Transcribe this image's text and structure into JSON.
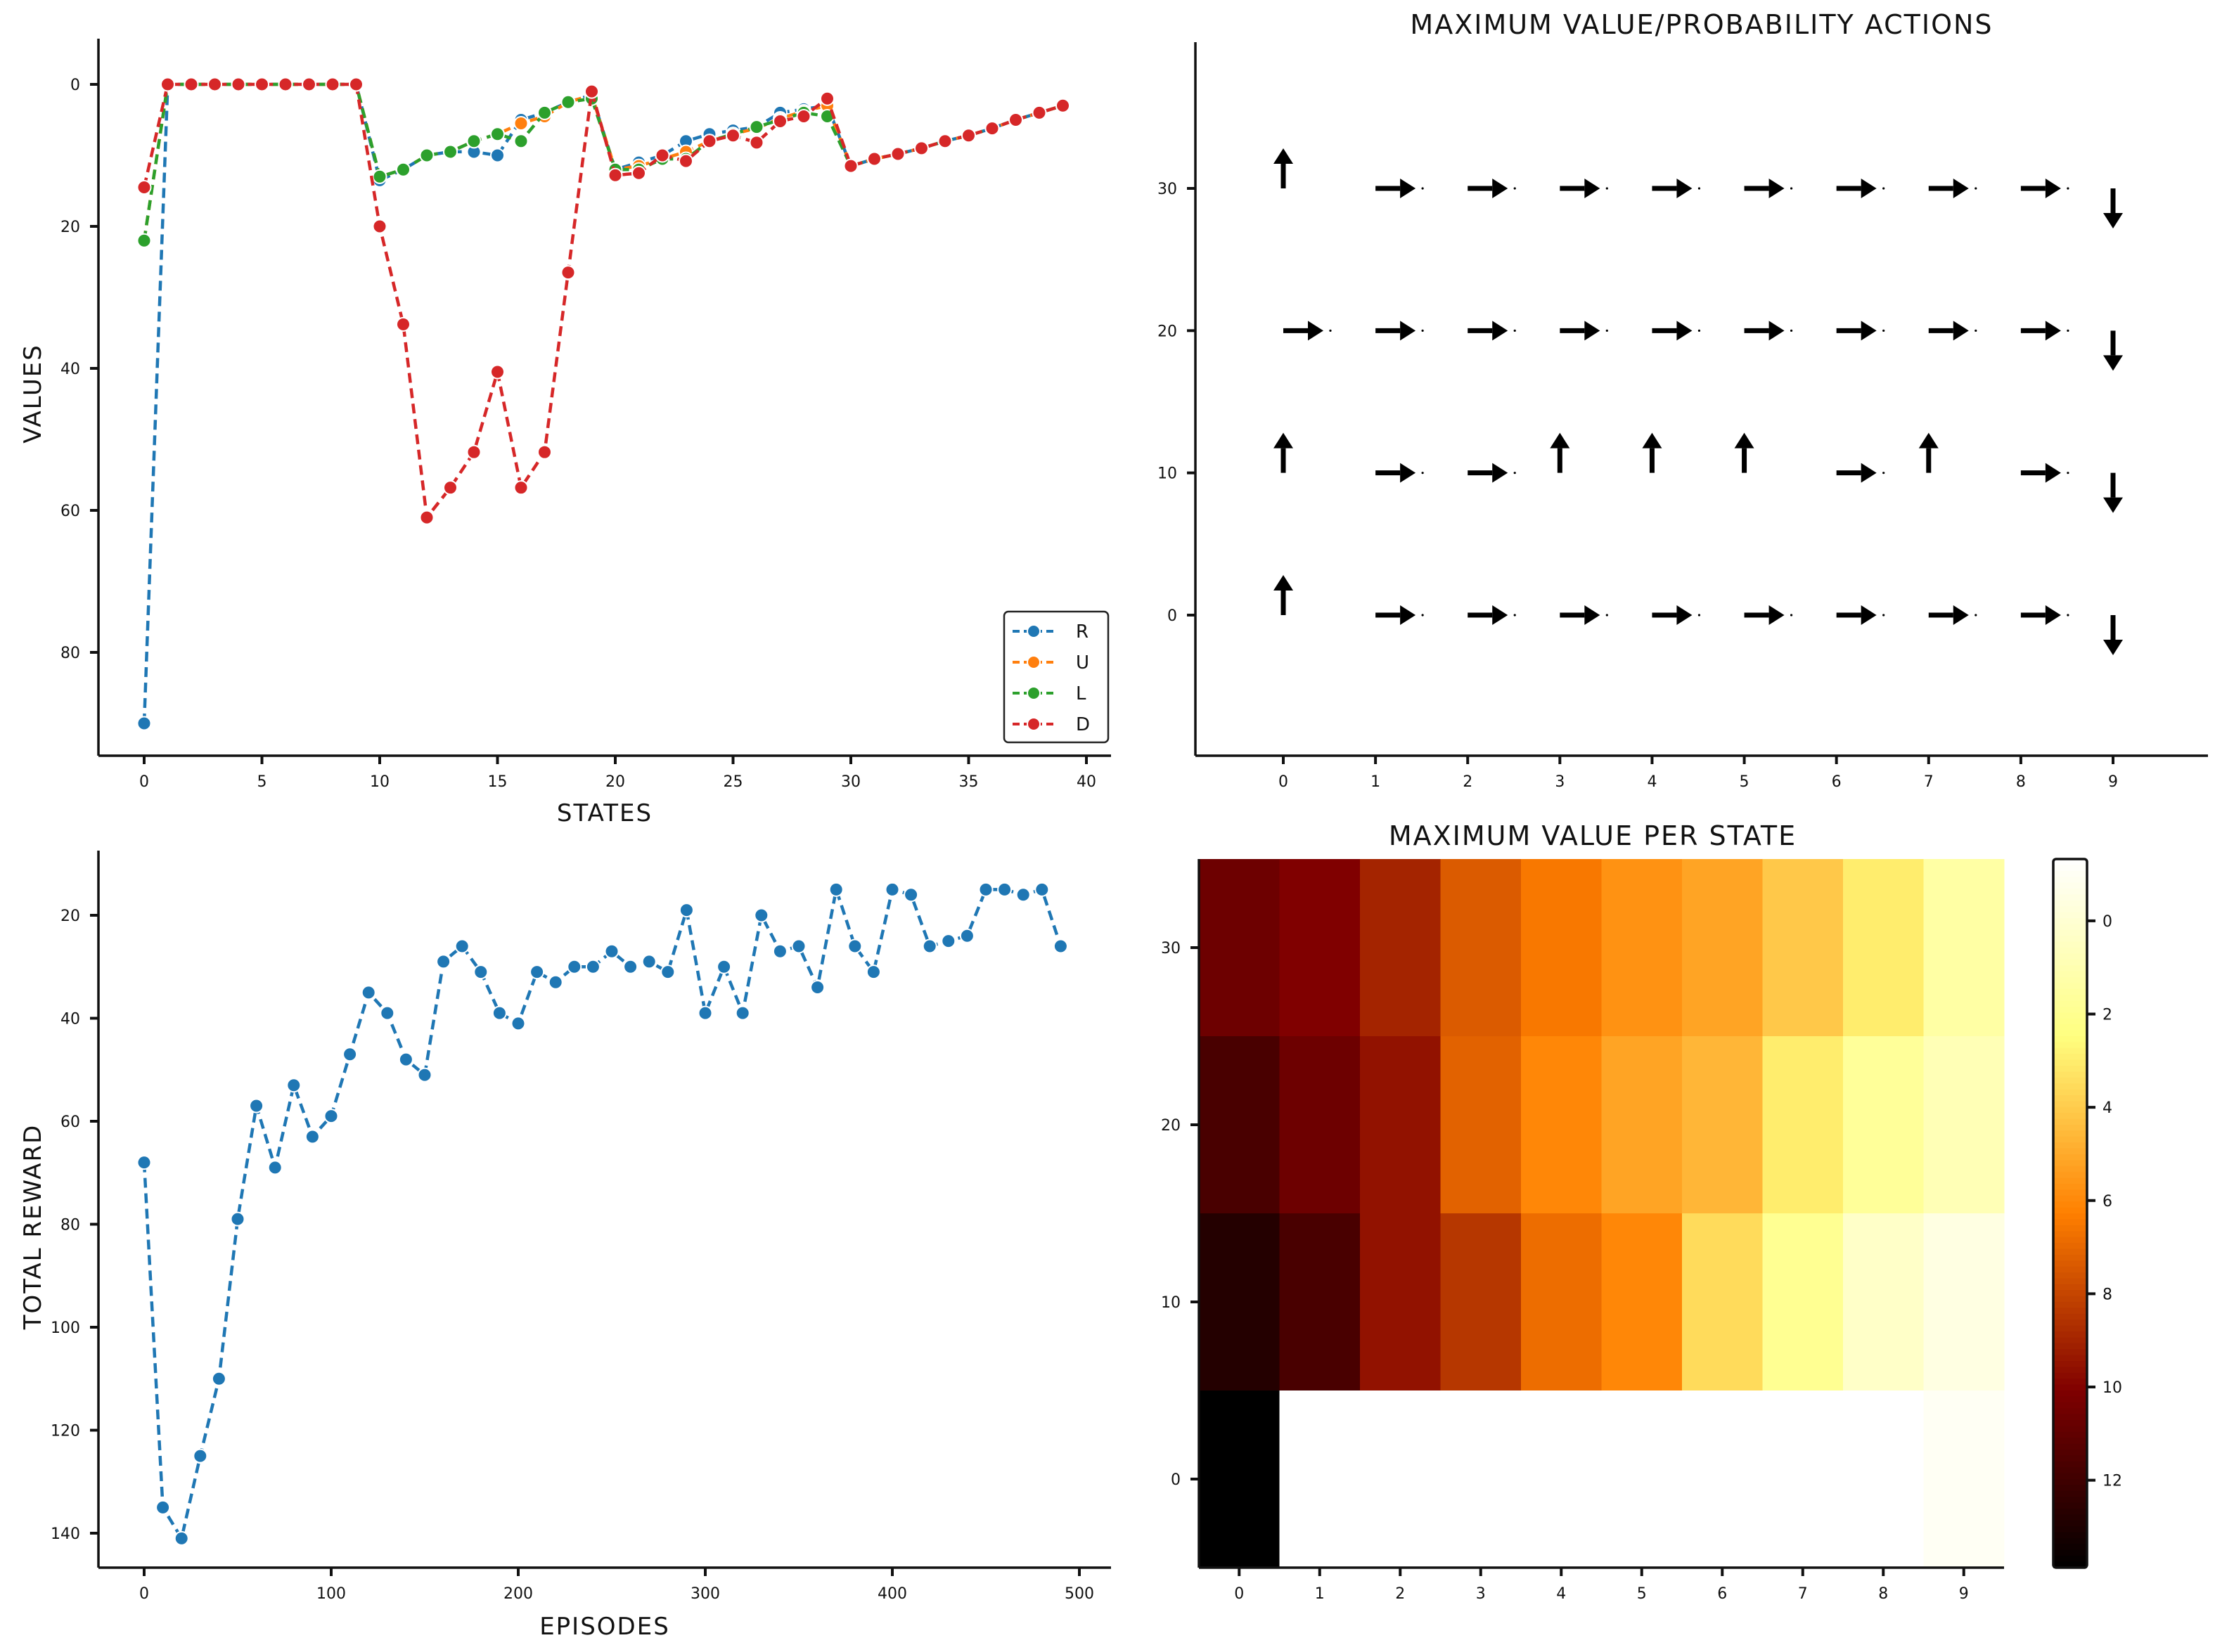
{
  "chart_data": [
    {
      "type": "line",
      "title": "",
      "xlabel": "STATES",
      "ylabel": "VALUES",
      "xlim": [
        -2,
        41
      ],
      "ylim": [
        -5,
        95
      ],
      "y_inverted": true,
      "x_ticks": [
        0,
        5,
        10,
        15,
        20,
        25,
        30,
        35,
        40
      ],
      "y_ticks": [
        0,
        20,
        40,
        60,
        80
      ],
      "legend": "bottom-right",
      "x": [
        0,
        1,
        2,
        3,
        4,
        5,
        6,
        7,
        8,
        9,
        10,
        11,
        12,
        13,
        14,
        15,
        16,
        17,
        18,
        19,
        20,
        21,
        22,
        23,
        24,
        25,
        26,
        27,
        28,
        29,
        30,
        31,
        32,
        33,
        34,
        35,
        36,
        37,
        38,
        39
      ],
      "series": [
        {
          "name": "R",
          "color": "#1f77b4",
          "values": [
            90,
            0,
            0,
            0,
            0,
            0,
            0,
            0,
            0,
            0,
            13.5,
            12,
            10,
            9.5,
            9.5,
            10,
            5,
            4,
            2.5,
            1.5,
            12,
            11,
            10,
            8,
            7,
            6.5,
            6,
            4,
            3.5,
            3,
            11.5,
            10.5,
            9.8,
            9,
            8,
            7.2,
            6.2,
            5,
            4,
            3
          ]
        },
        {
          "name": "U",
          "color": "#ff7f0e",
          "values": [
            22,
            0,
            0,
            0,
            0,
            0,
            0,
            0,
            0,
            0,
            13,
            12,
            10,
            9.5,
            8,
            7,
            5.5,
            4.5,
            2.5,
            1.5,
            12,
            11.5,
            10.5,
            9.5,
            8,
            7,
            6.2,
            4.8,
            3.8,
            3,
            11.5,
            10.5,
            9.8,
            9,
            8,
            7.2,
            6.2,
            5,
            4,
            3
          ]
        },
        {
          "name": "L",
          "color": "#2ca02c",
          "values": [
            22,
            0,
            0,
            0,
            0,
            0,
            0,
            0,
            0,
            0,
            13,
            12,
            10,
            9.5,
            8,
            7,
            8,
            4,
            2.5,
            2,
            12,
            12,
            10.5,
            10.5,
            8,
            7,
            6,
            5,
            4,
            4.5,
            11.5,
            10.5,
            9.8,
            9,
            8,
            7.2,
            6.2,
            5,
            4,
            3
          ]
        },
        {
          "name": "D",
          "color": "#d62728",
          "values": [
            14.5,
            0,
            0,
            0,
            0,
            0,
            0,
            0,
            0,
            0,
            20,
            33.8,
            61,
            56.8,
            51.8,
            40.5,
            56.8,
            51.8,
            26.5,
            1,
            12.8,
            12.5,
            10,
            10.8,
            8,
            7.2,
            8.2,
            5.2,
            4.5,
            2,
            11.5,
            10.5,
            9.8,
            9,
            8,
            7.2,
            6.2,
            5,
            4,
            3
          ]
        }
      ]
    },
    {
      "type": "quiver",
      "title": "MAXIMUM VALUE/PROBABILITY ACTIONS",
      "xlabel": "",
      "ylabel": "",
      "xlim": [
        -1,
        10
      ],
      "ylim": [
        -10,
        40
      ],
      "x_ticks": [
        0,
        1,
        2,
        3,
        4,
        5,
        6,
        7,
        8,
        9
      ],
      "y_ticks": [
        0,
        10,
        20,
        30
      ],
      "rows_y": [
        30,
        20,
        10,
        0
      ],
      "actions": [
        [
          "U",
          "R",
          "R",
          "R",
          "R",
          "R",
          "R",
          "R",
          "R",
          "D"
        ],
        [
          "R",
          "R",
          "R",
          "R",
          "R",
          "R",
          "R",
          "R",
          "R",
          "D"
        ],
        [
          "U",
          "R",
          "R",
          "U",
          "U",
          "U",
          "R",
          "U",
          "R",
          "D"
        ],
        [
          "U",
          "R",
          "R",
          "R",
          "R",
          "R",
          "R",
          "R",
          "R",
          "D"
        ]
      ]
    },
    {
      "type": "line",
      "title": "",
      "xlabel": "EPISODES",
      "ylabel": "TOTAL REWARD",
      "xlim": [
        -25,
        510
      ],
      "ylim": [
        9,
        148
      ],
      "y_inverted": true,
      "x_ticks": [
        0,
        100,
        200,
        300,
        400,
        500
      ],
      "y_ticks": [
        20,
        40,
        60,
        80,
        100,
        120,
        140
      ],
      "series": [
        {
          "color": "#1f77b4",
          "x": [
            0,
            10,
            20,
            30,
            40,
            50,
            60,
            70,
            80,
            90,
            100,
            110,
            120,
            130,
            140,
            150,
            160,
            170,
            180,
            190,
            200,
            210,
            220,
            230,
            240,
            250,
            260,
            270,
            280,
            290,
            300,
            310,
            320,
            330,
            340,
            350,
            360,
            370,
            380,
            390,
            400,
            410,
            420,
            430,
            440,
            450,
            460,
            470,
            480,
            490
          ],
          "values": [
            68,
            135,
            141,
            125,
            110,
            79,
            57,
            69,
            53,
            63,
            59,
            47,
            35,
            39,
            48,
            51,
            29,
            26,
            31,
            39,
            41,
            31,
            33,
            30,
            30,
            27,
            30,
            29,
            31,
            19,
            39,
            30,
            39,
            20,
            27,
            26,
            34,
            15,
            26,
            31,
            15,
            16,
            26,
            25,
            24,
            15,
            15,
            16,
            15,
            26
          ]
        }
      ]
    },
    {
      "type": "heatmap",
      "title": "MAXIMUM VALUE PER STATE",
      "xlabel": "",
      "ylabel": "",
      "x_ticks": [
        0,
        1,
        2,
        3,
        4,
        5,
        6,
        7,
        8,
        9
      ],
      "y_ticks": [
        30,
        20,
        10,
        0
      ],
      "colormap": "afmhot",
      "value_range": [
        0,
        14
      ],
      "colorbar_ticks": [
        0,
        2,
        4,
        6,
        8,
        10,
        12
      ],
      "rows": [
        {
          "y": 30,
          "values": [
            11,
            10.5,
            9.5,
            8,
            7.2,
            6.5,
            6,
            5,
            4,
            2.5
          ]
        },
        {
          "y": 20,
          "values": [
            12,
            11,
            10,
            7.8,
            6.8,
            6,
            5.5,
            4,
            2.8,
            2
          ]
        },
        {
          "y": 10,
          "values": [
            13,
            12,
            10,
            9,
            7.5,
            6.8,
            4.5,
            3,
            1.5,
            0.8
          ]
        },
        {
          "y": 0,
          "values": [
            14,
            null,
            null,
            null,
            null,
            null,
            null,
            null,
            null,
            0.3
          ]
        }
      ]
    }
  ]
}
